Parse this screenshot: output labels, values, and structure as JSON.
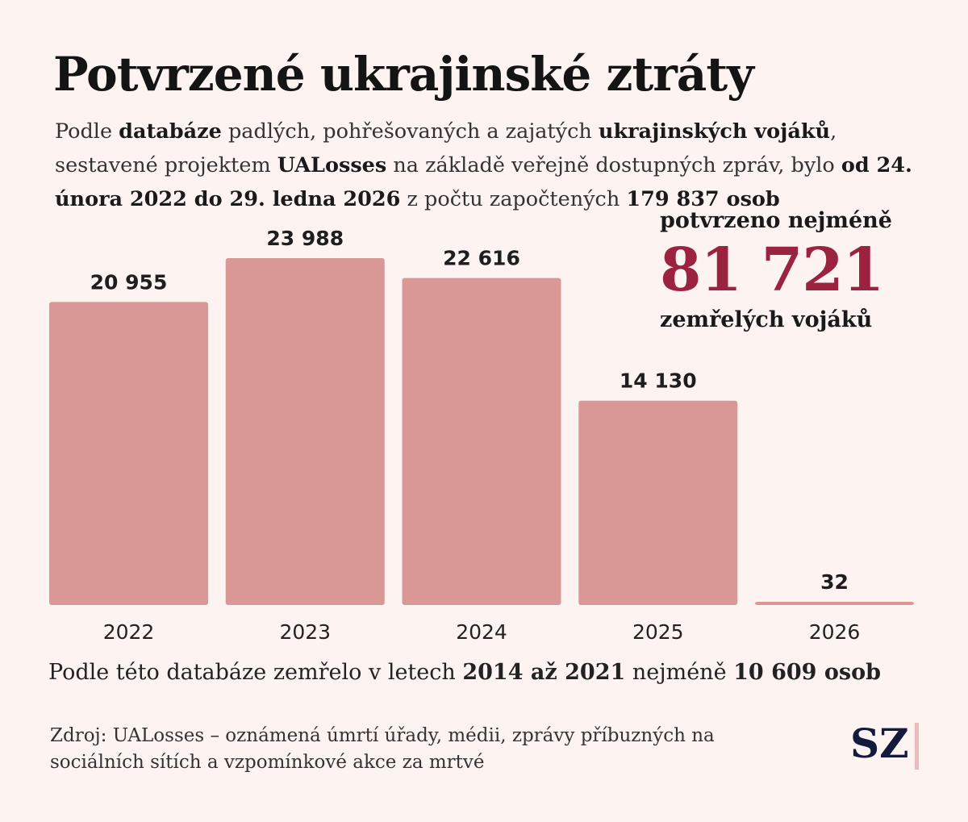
{
  "title": "Potvrzené ukrajinské ztráty",
  "subtitle": {
    "parts": [
      {
        "text": "Podle ",
        "bold": false
      },
      {
        "text": "databáze",
        "bold": true
      },
      {
        "text": " padlých, pohřešovaných a zajatých ",
        "bold": false
      },
      {
        "text": "ukrajinských vojáků",
        "bold": true
      },
      {
        "text": ", sestavené projektem ",
        "bold": false
      },
      {
        "text": "UALosses",
        "bold": true
      },
      {
        "text": " na základě veřejně dostupných zpráv, bylo ",
        "bold": false
      },
      {
        "text": "od 24. února 2022 do 29. ledna 2026",
        "bold": true
      },
      {
        "text": " z počtu započtených ",
        "bold": false
      },
      {
        "text": "179 837 osob",
        "bold": true
      }
    ]
  },
  "callout": {
    "line1": "potvrzeno nejméně",
    "number": "81 721",
    "line3": "zemřelých vojáků",
    "color": "#9b2340"
  },
  "chart_data": {
    "type": "bar",
    "categories": [
      "2022",
      "2023",
      "2024",
      "2025",
      "2026"
    ],
    "values": [
      20955,
      23988,
      22616,
      14130,
      32
    ],
    "value_labels": [
      "20 955",
      "23 988",
      "22 616",
      "14 130",
      "32"
    ],
    "bar_color": "#d99896",
    "ylim": [
      0,
      24000
    ],
    "grid": false
  },
  "note": {
    "parts": [
      {
        "text": "Podle této databáze zemřelo v letech ",
        "bold": false
      },
      {
        "text": "2014 až 2021",
        "bold": true
      },
      {
        "text": " nejméně ",
        "bold": false
      },
      {
        "text": "10 609 osob",
        "bold": true
      }
    ]
  },
  "source": "Zdroj: UALosses – oznámená úmrtí úřady, médii, zprávy příbuzných na sociálních sítích a vzpomínkové akce za mrtvé",
  "logo": "SZ"
}
